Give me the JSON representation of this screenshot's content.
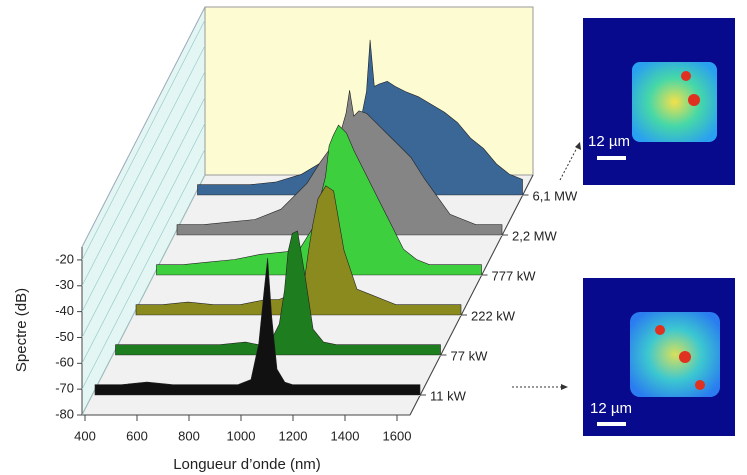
{
  "chart_data": {
    "type": "waterfall3d",
    "x_label": "Longueur d’onde (nm)",
    "y_label": "Spectre (dB)",
    "x": [
      400,
      500,
      600,
      700,
      800,
      900,
      950,
      1000,
      1030,
      1050,
      1064,
      1080,
      1100,
      1130,
      1160,
      1200,
      1250,
      1300,
      1350,
      1400,
      1450,
      1500,
      1550,
      1600,
      1650
    ],
    "xlim": [
      400,
      1650
    ],
    "xticks": [
      400,
      600,
      800,
      1000,
      1200,
      1400,
      1600
    ],
    "ylim": [
      -80,
      -15
    ],
    "yticks": [
      -20,
      -30,
      -40,
      -50,
      -60,
      -70,
      -80
    ],
    "series": [
      {
        "name": "11 kW",
        "color": "#111111",
        "values": [
          -76,
          -76,
          -75,
          -76,
          -76,
          -76,
          -76,
          -74,
          -60,
          -40,
          -27,
          -50,
          -70,
          -75,
          -76,
          -76,
          -76,
          -76,
          -76,
          -76,
          -76,
          -76,
          -76,
          -76,
          -76
        ]
      },
      {
        "name": "77 kW",
        "color": "#1e7d1e",
        "values": [
          -76,
          -76,
          -76,
          -76,
          -76,
          -75,
          -76,
          -74,
          -68,
          -55,
          -40,
          -33,
          -32,
          -50,
          -70,
          -75,
          -76,
          -76,
          -76,
          -76,
          -76,
          -76,
          -76,
          -76,
          -76
        ]
      },
      {
        "name": "222 kW",
        "color": "#8b8a1e",
        "values": [
          -76,
          -76,
          -75,
          -76,
          -76,
          -74,
          -74,
          -72,
          -70,
          -65,
          -55,
          -45,
          -35,
          -30,
          -32,
          -55,
          -70,
          -72,
          -74,
          -76,
          -76,
          -76,
          -76,
          -76,
          -76
        ]
      },
      {
        "name": "777 kW",
        "color": "#3ecf3e",
        "values": [
          -76,
          -76,
          -75,
          -74,
          -72,
          -71,
          -70,
          -62,
          -50,
          -42,
          -30,
          -26,
          -22,
          -25,
          -32,
          -40,
          -50,
          -60,
          -70,
          -74,
          -76,
          -76,
          -76,
          -76,
          -76
        ]
      },
      {
        "name": "2,2 MW",
        "color": "#858585",
        "values": [
          -76,
          -76,
          -75,
          -74,
          -70,
          -60,
          -52,
          -45,
          -40,
          -33,
          -24,
          -34,
          -32,
          -33,
          -36,
          -40,
          -45,
          -50,
          -58,
          -65,
          -72,
          -74,
          -76,
          -76,
          -76
        ]
      },
      {
        "name": "6,1 MW",
        "color": "#3a6796",
        "values": [
          -76,
          -76,
          -76,
          -75,
          -72,
          -66,
          -62,
          -55,
          -50,
          -40,
          -20,
          -38,
          -37,
          -36,
          -38,
          -40,
          -42,
          -45,
          -48,
          -52,
          -58,
          -62,
          -68,
          -72,
          -74
        ]
      }
    ],
    "annotations": [
      "12 µm",
      "12 µm"
    ]
  }
}
